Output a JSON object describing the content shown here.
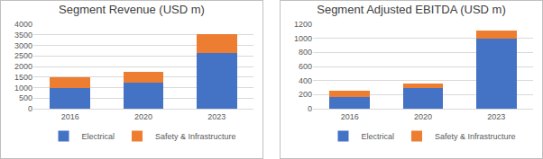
{
  "chart_data": [
    {
      "type": "bar",
      "title": "Segment Revenue (USD m)",
      "stacked": true,
      "grid": true,
      "legend": "bottom",
      "categories": [
        "2016",
        "2020",
        "2023"
      ],
      "series": [
        {
          "name": "Electrical",
          "color": "#4472c4",
          "values": [
            970,
            1250,
            2650
          ]
        },
        {
          "name": "Safety & Infrastructure",
          "color": "#ed7d31",
          "values": [
            530,
            500,
            870
          ]
        }
      ],
      "ylim": [
        0,
        4000
      ],
      "yticks": [
        0,
        500,
        1000,
        1500,
        2000,
        2500,
        3000,
        3500,
        4000
      ]
    },
    {
      "type": "bar",
      "title": "Segment Adjusted EBITDA (USD m)",
      "stacked": true,
      "grid": true,
      "legend": "bottom",
      "categories": [
        "2016",
        "2020",
        "2023"
      ],
      "series": [
        {
          "name": "Electrical",
          "color": "#4472c4",
          "values": [
            170,
            290,
            1000
          ]
        },
        {
          "name": "Safety & Infrastructure",
          "color": "#ed7d31",
          "values": [
            90,
            70,
            110
          ]
        }
      ],
      "ylim": [
        0,
        1200
      ],
      "yticks": [
        0,
        200,
        400,
        600,
        800,
        1000,
        1200
      ]
    }
  ]
}
